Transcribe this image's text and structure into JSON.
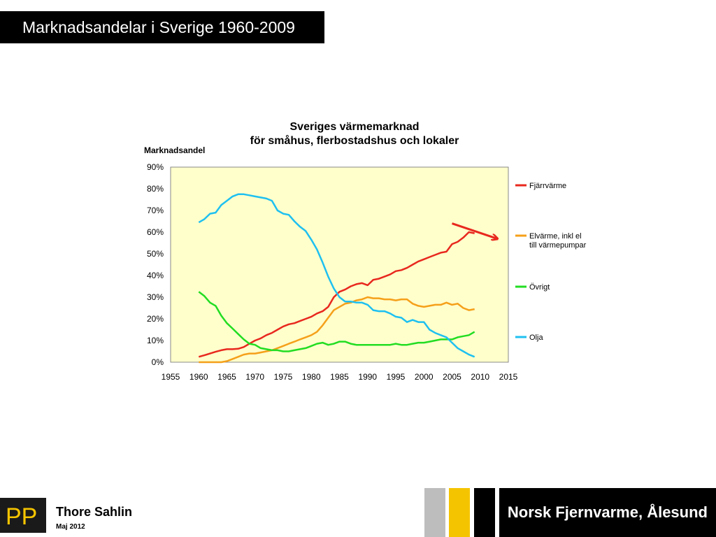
{
  "slide": {
    "title": "Marknadsandelar i Sverige 1960-2009",
    "author": "Thore Sahlin",
    "date": "Maj  2012",
    "brand": "Norsk Fjernvarme, Ålesund",
    "logo_text": "PP"
  },
  "colors": {
    "plot_bg": "#ffffcc",
    "fjarrvarme": "#e8281e",
    "elvarme": "#f5a01a",
    "ovrigt": "#22dd22",
    "olja": "#1ec0f0",
    "arrow": "#e8281e"
  },
  "chart_data": {
    "type": "line",
    "title_line1": "Sveriges värmemarknad",
    "title_line2": "för småhus, flerbostadshus och lokaler",
    "ylabel": "Marknadsandel",
    "xlabel": "",
    "xlim": [
      1955,
      2015
    ],
    "ylim": [
      0,
      90
    ],
    "x_ticks": [
      "1955",
      "1960",
      "1965",
      "1970",
      "1975",
      "1980",
      "1985",
      "1990",
      "1995",
      "2000",
      "2005",
      "2010",
      "2015"
    ],
    "y_ticks": [
      "0%",
      "10%",
      "20%",
      "30%",
      "40%",
      "50%",
      "60%",
      "70%",
      "80%",
      "90%"
    ],
    "legend_position": "right",
    "x": [
      1960,
      1961,
      1962,
      1963,
      1964,
      1965,
      1966,
      1967,
      1968,
      1969,
      1970,
      1971,
      1972,
      1973,
      1974,
      1975,
      1976,
      1977,
      1978,
      1979,
      1980,
      1981,
      1982,
      1983,
      1984,
      1985,
      1986,
      1987,
      1988,
      1989,
      1990,
      1991,
      1992,
      1993,
      1994,
      1995,
      1996,
      1997,
      1998,
      1999,
      2000,
      2001,
      2002,
      2003,
      2004,
      2005,
      2006,
      2007,
      2008,
      2009
    ],
    "series": [
      {
        "name": "Fjärrvärme",
        "color_key": "fjarrvarme",
        "values": [
          2.5,
          3.2,
          4,
          4.8,
          5.5,
          6,
          6,
          6.2,
          7,
          8.5,
          10,
          11,
          12.5,
          13.5,
          15,
          16.5,
          17.5,
          18,
          19,
          20,
          21,
          22.5,
          23.5,
          25.5,
          30,
          32.5,
          33.5,
          35,
          36,
          36.5,
          35.5,
          38,
          38.5,
          39.5,
          40.5,
          42,
          42.5,
          43.5,
          45,
          46.5,
          47.5,
          48.5,
          49.5,
          50.5,
          51,
          54.5,
          55.5,
          57.5,
          60,
          59.5
        ]
      },
      {
        "name": "Elvärme, inkl el till värmepumpar",
        "color_key": "elvarme",
        "values": [
          0,
          0,
          0,
          0,
          0,
          0.5,
          1.5,
          2.5,
          3.5,
          4,
          4,
          4.5,
          5,
          5.5,
          6.5,
          7.5,
          8.5,
          9.5,
          10.5,
          11.5,
          12.5,
          14,
          17,
          20.5,
          24,
          25.5,
          27,
          27.5,
          28.5,
          29,
          30,
          29.5,
          29.5,
          29,
          29,
          28.5,
          29,
          29,
          27,
          26,
          25.5,
          26,
          26.5,
          26.5,
          27.5,
          26.5,
          27,
          25,
          24,
          24.5
        ]
      },
      {
        "name": "Övrigt",
        "color_key": "ovrigt",
        "values": [
          32.5,
          30.5,
          27.5,
          26,
          21.5,
          18,
          15.5,
          13,
          10.5,
          8.5,
          8,
          6.5,
          6,
          5.5,
          5.5,
          5,
          5,
          5.5,
          6,
          6.5,
          7.5,
          8.5,
          9,
          8,
          8.5,
          9.5,
          9.5,
          8.5,
          8,
          8,
          8,
          8,
          8,
          8,
          8,
          8.5,
          8,
          8,
          8.5,
          9,
          9,
          9.5,
          10,
          10.5,
          10.5,
          10.5,
          11.5,
          12,
          12.5,
          14
        ]
      },
      {
        "name": "Olja",
        "color_key": "olja",
        "values": [
          64.5,
          66,
          68.5,
          69,
          72.5,
          74.5,
          76.5,
          77.5,
          77.5,
          77,
          76.5,
          76,
          75.5,
          74.5,
          70,
          68.5,
          68,
          65,
          62.5,
          60.5,
          56.5,
          52,
          46,
          39.5,
          34,
          30,
          28,
          28,
          27.5,
          27.5,
          26.5,
          24,
          23.5,
          23.5,
          22.5,
          21,
          20.5,
          18.5,
          19.5,
          18.5,
          18.5,
          15,
          13.5,
          12.5,
          11.5,
          9,
          6.5,
          5,
          3.5,
          2.5
        ]
      }
    ],
    "annotation": {
      "type": "arrow",
      "from": [
        2005,
        64
      ],
      "to": [
        2013,
        57
      ]
    }
  }
}
